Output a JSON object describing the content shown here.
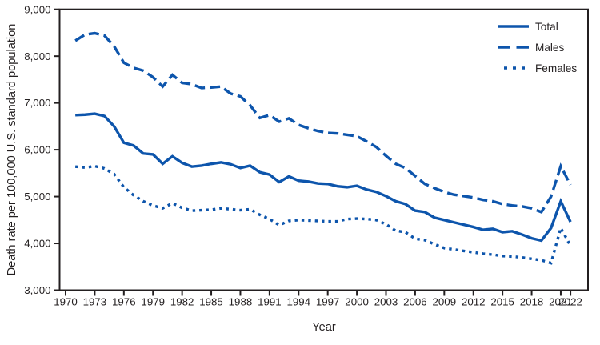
{
  "figure": {
    "background_color": "#ffffff",
    "axis_color": "#231f20",
    "line_color": "#0d55ac"
  },
  "chart_data": {
    "type": "line",
    "title": "",
    "xlabel": "Year",
    "ylabel": "Death rate per 100,000 U.S. standard population",
    "ylim": [
      3000,
      9000
    ],
    "y_ticks": [
      3000,
      4000,
      5000,
      6000,
      7000,
      8000,
      9000
    ],
    "y_tick_labels": [
      "3,000",
      "4,000",
      "5,000",
      "6,000",
      "7,000",
      "8,000",
      "9,000"
    ],
    "x_ticks": [
      1970,
      1973,
      1976,
      1979,
      1982,
      1985,
      1988,
      1991,
      1994,
      1997,
      2000,
      2003,
      2006,
      2009,
      2012,
      2015,
      2018,
      2021,
      2022
    ],
    "grid": false,
    "legend_position": "top-right-inside",
    "years": [
      1971,
      1972,
      1973,
      1974,
      1975,
      1976,
      1977,
      1978,
      1979,
      1980,
      1981,
      1982,
      1983,
      1984,
      1985,
      1986,
      1987,
      1988,
      1989,
      1990,
      1991,
      1992,
      1993,
      1994,
      1995,
      1996,
      1997,
      1998,
      1999,
      2000,
      2001,
      2002,
      2003,
      2004,
      2005,
      2006,
      2007,
      2008,
      2009,
      2010,
      2011,
      2012,
      2013,
      2014,
      2015,
      2016,
      2017,
      2018,
      2019,
      2020,
      2021,
      2022
    ],
    "series": [
      {
        "name": "Total",
        "style": "solid",
        "values": [
          6740,
          6750,
          6770,
          6720,
          6500,
          6150,
          6090,
          5920,
          5900,
          5700,
          5860,
          5720,
          5640,
          5660,
          5700,
          5730,
          5690,
          5610,
          5660,
          5520,
          5470,
          5310,
          5430,
          5340,
          5320,
          5280,
          5270,
          5220,
          5200,
          5230,
          5150,
          5100,
          5010,
          4900,
          4840,
          4700,
          4670,
          4550,
          4500,
          4450,
          4400,
          4350,
          4290,
          4310,
          4240,
          4260,
          4190,
          4110,
          4060,
          4330,
          4900,
          4460
        ]
      },
      {
        "name": "Males",
        "style": "dashed",
        "values": [
          8330,
          8460,
          8490,
          8440,
          8210,
          7860,
          7750,
          7690,
          7550,
          7350,
          7600,
          7430,
          7400,
          7320,
          7330,
          7350,
          7200,
          7140,
          6950,
          6680,
          6740,
          6600,
          6670,
          6530,
          6460,
          6400,
          6360,
          6350,
          6320,
          6290,
          6180,
          6060,
          5870,
          5700,
          5610,
          5440,
          5270,
          5180,
          5100,
          5040,
          5010,
          4980,
          4930,
          4900,
          4840,
          4810,
          4790,
          4750,
          4670,
          5000,
          5650,
          5250
        ]
      },
      {
        "name": "Females",
        "style": "dotted",
        "values": [
          5640,
          5620,
          5650,
          5600,
          5480,
          5200,
          5030,
          4900,
          4810,
          4750,
          4860,
          4760,
          4700,
          4710,
          4720,
          4750,
          4730,
          4710,
          4730,
          4610,
          4520,
          4390,
          4480,
          4500,
          4490,
          4480,
          4470,
          4470,
          4520,
          4530,
          4520,
          4500,
          4410,
          4270,
          4240,
          4100,
          4070,
          3980,
          3900,
          3870,
          3840,
          3810,
          3780,
          3760,
          3730,
          3720,
          3700,
          3670,
          3640,
          3580,
          4330,
          3950
        ]
      }
    ]
  }
}
